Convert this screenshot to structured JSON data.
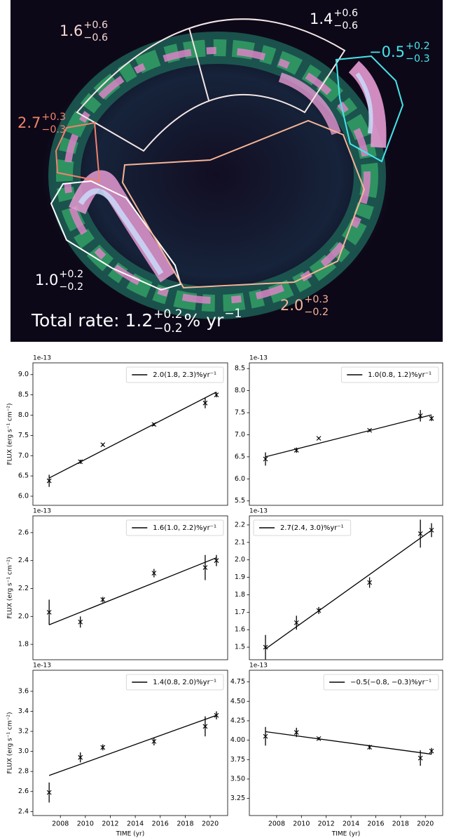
{
  "image": {
    "labels": [
      {
        "value": "1.6",
        "plus": "+0.6",
        "minus": "−0.6",
        "color": "#f6d6d2"
      },
      {
        "value": "1.4",
        "plus": "+0.6",
        "minus": "−0.6",
        "color": "#ffffff"
      },
      {
        "value": "−0.5",
        "plus": "+0.2",
        "minus": "−0.3",
        "color": "#45e6ea"
      },
      {
        "value": "2.7",
        "plus": "+0.3",
        "minus": "−0.3",
        "color": "#f2826c"
      },
      {
        "value": "1.0",
        "plus": "+0.2",
        "minus": "−0.2",
        "color": "#ffffff"
      },
      {
        "value": "2.0",
        "plus": "+0.3",
        "minus": "−0.2",
        "color": "#f6b496"
      }
    ],
    "total": {
      "text": "Total rate: 1.2",
      "plus": "+0.2",
      "minus": "−0.2",
      "unit": "% yr",
      "unit_exp": "−1",
      "color": "#ffffff"
    }
  },
  "chart_data": [
    {
      "type": "line",
      "scale_label": "1e-13",
      "ylabel": "FLUX (erg s⁻¹ cm⁻²)",
      "x": [
        2007.1,
        2009.6,
        2011.4,
        2015.5,
        2019.6,
        2020.5
      ],
      "series": [
        {
          "values": [
            6.38,
            6.85,
            7.27,
            7.77,
            8.3,
            8.5
          ],
          "errors": [
            0.15,
            0.05,
            0.03,
            0.04,
            0.13,
            0.06
          ],
          "color": "#000000"
        },
        {
          "name": "2.0(1.8, 2.3)%yr⁻¹",
          "x": [
            2007.1,
            2020.5
          ],
          "values": [
            6.45,
            8.57
          ],
          "color": "#000000"
        }
      ],
      "xlim": [
        2005.8,
        2021.4
      ],
      "ylim": [
        5.775,
        9.29
      ],
      "yticks": [
        {
          "value": 6,
          "label": "6.0"
        },
        6.5,
        {
          "value": 7,
          "label": "7.0"
        },
        7.5,
        {
          "value": 8,
          "label": "8.0"
        },
        8.5,
        {
          "value": 9,
          "label": "9.0"
        }
      ],
      "legend": "upper right"
    },
    {
      "type": "line",
      "scale_label": "1e-13",
      "x": [
        2007.1,
        2009.6,
        2011.4,
        2015.5,
        2019.6,
        2020.5
      ],
      "series": [
        {
          "values": [
            6.45,
            6.65,
            6.92,
            7.1,
            7.43,
            7.37
          ],
          "errors": [
            0.15,
            0.06,
            0.02,
            0.03,
            0.13,
            0.06
          ],
          "color": "#000000"
        },
        {
          "name": "1.0(0.8, 1.2)%yr⁻¹",
          "x": [
            2007.1,
            2020.5
          ],
          "values": [
            6.5,
            7.45
          ],
          "color": "#000000"
        }
      ],
      "xlim": [
        2005.8,
        2021.4
      ],
      "ylim": [
        5.4,
        8.63
      ],
      "yticks": [
        5.5,
        {
          "value": 6,
          "label": "6.0"
        },
        6.5,
        {
          "value": 7,
          "label": "7.0"
        },
        7.5,
        {
          "value": 8,
          "label": "8.0"
        },
        8.5
      ],
      "legend": "upper right"
    },
    {
      "type": "line",
      "scale_label": "1e-13",
      "ylabel": "FLUX (erg s⁻¹ cm⁻²)",
      "x": [
        2007.1,
        2009.6,
        2011.4,
        2015.5,
        2019.6,
        2020.5
      ],
      "series": [
        {
          "values": [
            2.03,
            1.96,
            2.12,
            2.31,
            2.35,
            2.4
          ],
          "errors": [
            0.09,
            0.04,
            0.02,
            0.03,
            0.09,
            0.04
          ],
          "color": "#000000"
        },
        {
          "name": "1.6(1.0, 2.2)%yr⁻¹",
          "x": [
            2007.1,
            2020.5
          ],
          "values": [
            1.94,
            2.42
          ],
          "color": "#000000"
        }
      ],
      "xlim": [
        2005.8,
        2021.4
      ],
      "ylim": [
        1.69,
        2.72
      ],
      "yticks": [
        1.8,
        {
          "value": 2,
          "label": "2.0"
        },
        2.2,
        2.4,
        2.6
      ],
      "legend": "upper right"
    },
    {
      "type": "line",
      "scale_label": "1e-13",
      "x": [
        2007.1,
        2009.6,
        2011.4,
        2015.5,
        2019.6,
        2020.5
      ],
      "series": [
        {
          "values": [
            1.5,
            1.64,
            1.71,
            1.87,
            2.15,
            2.17
          ],
          "errors": [
            0.07,
            0.04,
            0.02,
            0.03,
            0.08,
            0.04
          ],
          "color": "#000000"
        },
        {
          "name": "2.7(2.4, 3.0)%yr⁻¹",
          "x": [
            2007.1,
            2020.5
          ],
          "values": [
            1.49,
            2.17
          ],
          "color": "#000000"
        }
      ],
      "xlim": [
        2005.8,
        2021.4
      ],
      "ylim": [
        1.428,
        2.252
      ],
      "yticks": [
        1.5,
        1.6,
        1.7,
        1.8,
        1.9,
        {
          "value": 2,
          "label": "2.0"
        },
        2.1,
        2.2
      ],
      "legend": "upper left"
    },
    {
      "type": "line",
      "scale_label": "1e-13",
      "ylabel": "FLUX (erg s⁻¹ cm⁻²)",
      "xlabel": "TIME (yr)",
      "x": [
        2007.1,
        2009.6,
        2011.4,
        2015.5,
        2019.6,
        2020.5
      ],
      "series": [
        {
          "values": [
            2.59,
            2.94,
            3.04,
            3.1,
            3.25,
            3.36
          ],
          "errors": [
            0.1,
            0.05,
            0.03,
            0.04,
            0.1,
            0.04
          ],
          "color": "#000000"
        },
        {
          "name": "1.4(0.8, 2.0)%yr⁻¹",
          "x": [
            2007.1,
            2020.5
          ],
          "values": [
            2.76,
            3.36
          ],
          "color": "#000000"
        }
      ],
      "xlim": [
        2005.8,
        2021.4
      ],
      "ylim": [
        2.36,
        3.81
      ],
      "xticks": [
        2008,
        2010,
        2012,
        2014,
        2016,
        2018,
        2020
      ],
      "yticks": [
        2.4,
        2.6,
        2.8,
        {
          "value": 3,
          "label": "3.0"
        },
        3.2,
        3.4,
        3.6
      ],
      "legend": "upper right"
    },
    {
      "type": "line",
      "scale_label": "1e-13",
      "xlabel": "TIME (yr)",
      "x": [
        2007.1,
        2009.6,
        2011.4,
        2015.5,
        2019.6,
        2020.5
      ],
      "series": [
        {
          "values": [
            4.05,
            4.1,
            4.02,
            3.91,
            3.77,
            3.86
          ],
          "errors": [
            0.12,
            0.06,
            0.02,
            0.03,
            0.1,
            0.04
          ],
          "color": "#000000"
        },
        {
          "name": "−0.5(−0.8, −0.3)%yr⁻¹",
          "x": [
            2007.1,
            2020.5
          ],
          "values": [
            4.11,
            3.82
          ],
          "color": "#000000"
        }
      ],
      "xlim": [
        2005.8,
        2021.4
      ],
      "ylim": [
        3.03,
        4.9
      ],
      "xticks": [
        2008,
        2010,
        2012,
        2014,
        2016,
        2018,
        2020
      ],
      "yticks": [
        3.25,
        {
          "value": 3.5,
          "label": "3.50"
        },
        3.75,
        {
          "value": 4,
          "label": "4.00"
        },
        4.25,
        {
          "value": 4.5,
          "label": "4.50"
        },
        4.75
      ],
      "legend": "upper right"
    }
  ]
}
